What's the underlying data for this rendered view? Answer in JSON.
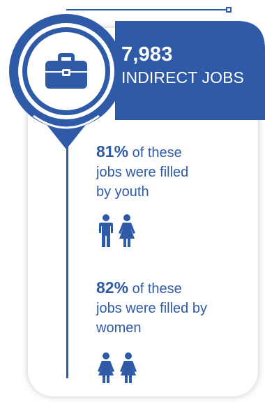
{
  "colors": {
    "primary_blue": "#2e5aa8",
    "white": "#ffffff"
  },
  "headline": {
    "number": "7,983",
    "label": "INDIRECT JOBS",
    "icon": "briefcase-icon"
  },
  "stats": [
    {
      "percent": "81%",
      "text_line1": " of these",
      "text_line2": "jobs were filled",
      "text_line3": "by youth",
      "icon": "youth-couple-icon"
    },
    {
      "percent": "82%",
      "text_line1": " of these",
      "text_line2": "jobs were filled by",
      "text_line3": "women",
      "icon": "women-pair-icon"
    }
  ]
}
